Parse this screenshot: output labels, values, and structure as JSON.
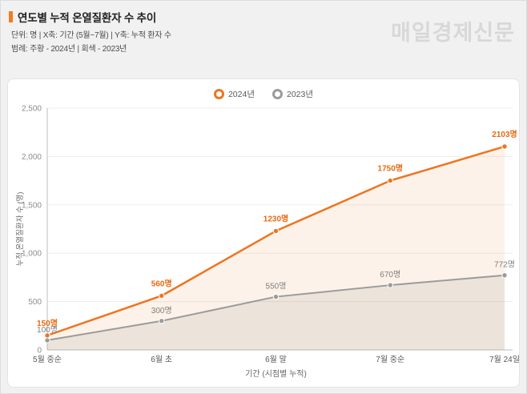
{
  "header": {
    "title": "연도별 누적 온열질환자 수 추이",
    "meta_line1": "단위: 명  |  X축: 기간 (5월~7월)  |  Y축: 누적 환자 수",
    "meta_line2": "범례: 주황 - 2024년  |  회색 - 2023년",
    "logo": "매일경제신문"
  },
  "colors": {
    "accent_orange": "#ef7d23",
    "series_orange": "#ee7420",
    "series_gray": "#9b9b9b",
    "logo_gray": "#d8d8d8",
    "grid": "#ededed",
    "axis": "#bdbdbd"
  },
  "chart_data": {
    "type": "line",
    "title": "",
    "categories": [
      "5월 중순",
      "6월 초",
      "6월 말",
      "7월 중순",
      "7월 24일"
    ],
    "series": [
      {
        "name": "2024년",
        "color": "#ee7420",
        "fill": "rgba(239,125,35,0.10)",
        "label_color": "#e8680f",
        "bold_labels": true,
        "values": [
          150,
          560,
          1230,
          1750,
          2103
        ],
        "labels": [
          "150명",
          "560명",
          "1230명",
          "1750명",
          "2103명"
        ]
      },
      {
        "name": "2023년",
        "color": "#9b9b9b",
        "fill": "rgba(150,150,150,0.16)",
        "label_color": "#7d7d7d",
        "bold_labels": false,
        "values": [
          100,
          300,
          550,
          670,
          772
        ],
        "labels": [
          "100명",
          "300명",
          "550명",
          "670명",
          "772명"
        ]
      }
    ],
    "xlabel": "기간 (시점별 누적)",
    "ylabel": "누적 온열질환자 수 (명)",
    "ylim": [
      0,
      2500
    ],
    "yticks": [
      0,
      500,
      1000,
      1500,
      2000,
      2500
    ],
    "grid": true,
    "legend_position": "top-center"
  }
}
